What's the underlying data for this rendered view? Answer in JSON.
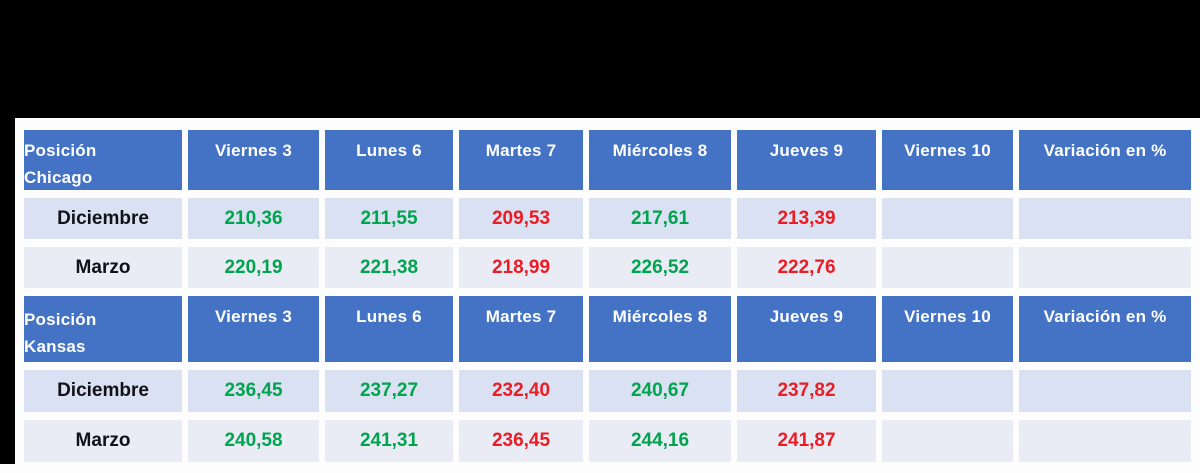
{
  "page": {
    "background": "#000000",
    "panel_background": "#FDFDFE"
  },
  "colors": {
    "header_bg": "#4472C4",
    "header_text": "#FFFFFF",
    "row_band_1": "#D9E1F2",
    "row_band_2": "#E9EBF5",
    "value_up": "#00A44E",
    "value_down": "#EC1C24",
    "row_label": "#101218"
  },
  "chart_data": [
    {
      "type": "table",
      "title": "Posición Chicago",
      "title_lines": [
        "Posición",
        "Chicago"
      ],
      "column_headers": [
        "Viernes 3",
        "Lunes 6",
        "Martes 7",
        "Miércoles 8",
        "Jueves 9",
        "Viernes 10",
        "Variación en %"
      ],
      "rows": [
        {
          "label": "Diciembre",
          "values": [
            "210,36",
            "211,55",
            "209,53",
            "217,61",
            "213,39",
            "",
            ""
          ],
          "trends": [
            "up",
            "up",
            "down",
            "up",
            "down",
            "",
            ""
          ]
        },
        {
          "label": "Marzo",
          "values": [
            "220,19",
            "221,38",
            "218,99",
            "226,52",
            "222,76",
            "",
            ""
          ],
          "trends": [
            "up",
            "up",
            "down",
            "up",
            "down",
            "",
            ""
          ]
        }
      ]
    },
    {
      "type": "table",
      "title": "Posición Kansas",
      "title_lines": [
        "Posición",
        "Kansas"
      ],
      "column_headers": [
        "Viernes 3",
        "Lunes 6",
        "Martes 7",
        "Miércoles 8",
        "Jueves 9",
        "Viernes 10",
        "Variación en %"
      ],
      "rows": [
        {
          "label": "Diciembre",
          "values": [
            "236,45",
            "237,27",
            "232,40",
            "240,67",
            "237,82",
            "",
            ""
          ],
          "trends": [
            "up",
            "up",
            "down",
            "up",
            "down",
            "",
            ""
          ]
        },
        {
          "label": "Marzo",
          "values": [
            "240,58",
            "241,31",
            "236,45",
            "244,16",
            "241,87",
            "",
            ""
          ],
          "trends": [
            "up",
            "up",
            "down",
            "up",
            "down",
            "",
            ""
          ]
        }
      ]
    }
  ]
}
